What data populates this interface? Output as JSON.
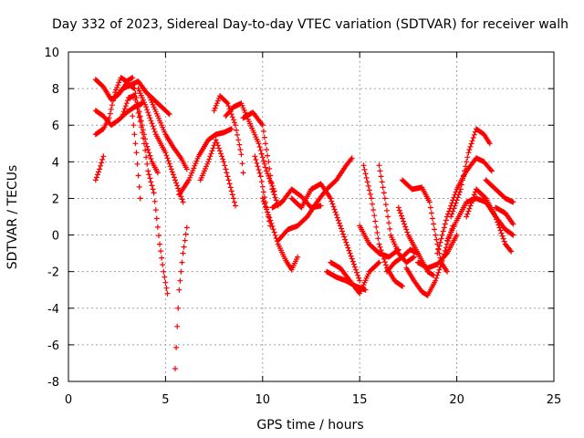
{
  "chart_data": {
    "type": "scatter",
    "title": "Day 332 of 2023, Sidereal Day-to-day VTEC variation (SDTVAR) for receiver walh",
    "xlabel": "GPS time / hours",
    "ylabel": "SDTVAR / TECUs",
    "xlim": [
      0,
      25
    ],
    "ylim": [
      -8,
      10
    ],
    "xticks": [
      0,
      5,
      10,
      15,
      20,
      25
    ],
    "yticks": [
      -8,
      -6,
      -4,
      -2,
      0,
      2,
      4,
      6,
      8,
      10
    ],
    "grid": true,
    "marker": "+",
    "series": [
      {
        "name": "arcs",
        "color": "#ff0000",
        "arcs": [
          [
            [
              1.4,
              8.5
            ],
            [
              1.8,
              8.1
            ],
            [
              2.2,
              7.4
            ],
            [
              2.6,
              7.7
            ],
            [
              3.0,
              8.3
            ],
            [
              3.4,
              8.0
            ],
            [
              3.7,
              6.5
            ],
            [
              4.0,
              5.0
            ],
            [
              4.3,
              4.0
            ],
            [
              4.6,
              3.4
            ]
          ],
          [
            [
              1.4,
              6.8
            ],
            [
              1.8,
              6.5
            ],
            [
              2.2,
              6.0
            ],
            [
              2.6,
              6.3
            ],
            [
              3.0,
              6.7
            ],
            [
              3.4,
              7.0
            ],
            [
              3.8,
              7.2
            ]
          ],
          [
            [
              1.4,
              5.5
            ],
            [
              1.8,
              5.8
            ],
            [
              2.1,
              6.4
            ],
            [
              2.4,
              7.8
            ],
            [
              2.7,
              8.6
            ],
            [
              3.0,
              8.4
            ],
            [
              3.3,
              8.6
            ]
          ],
          [
            [
              1.4,
              3.0
            ],
            [
              1.6,
              3.6
            ],
            [
              1.8,
              4.3
            ]
          ],
          [
            [
              2.4,
              7.5
            ],
            [
              2.8,
              8.0
            ],
            [
              3.2,
              8.2
            ],
            [
              3.6,
              8.4
            ],
            [
              4.0,
              7.8
            ],
            [
              4.4,
              7.4
            ],
            [
              4.8,
              7.0
            ],
            [
              5.2,
              6.6
            ]
          ],
          [
            [
              2.8,
              6.6
            ],
            [
              3.1,
              7.5
            ],
            [
              3.4,
              7.6
            ],
            [
              3.7,
              6.2
            ],
            [
              3.9,
              5.0
            ],
            [
              4.1,
              3.5
            ],
            [
              4.4,
              2.3
            ],
            [
              4.7,
              -0.5
            ],
            [
              4.9,
              -2.0
            ],
            [
              5.1,
              -3.2
            ]
          ],
          [
            [
              3.3,
              6.5
            ],
            [
              3.5,
              4.5
            ],
            [
              3.7,
              2.0
            ]
          ],
          [
            [
              3.6,
              8.0
            ],
            [
              4.0,
              7.0
            ],
            [
              4.5,
              5.5
            ],
            [
              5.0,
              4.5
            ],
            [
              5.5,
              3.0
            ],
            [
              5.9,
              1.8
            ]
          ],
          [
            [
              4.2,
              7.5
            ],
            [
              4.6,
              6.5
            ],
            [
              5.0,
              5.5
            ],
            [
              5.4,
              4.8
            ],
            [
              5.8,
              4.2
            ],
            [
              6.1,
              3.6
            ]
          ],
          [
            [
              5.5,
              -7.3
            ],
            [
              5.6,
              -5.0
            ],
            [
              5.7,
              -3.0
            ],
            [
              5.9,
              -1.0
            ],
            [
              6.1,
              0.4
            ]
          ],
          [
            [
              5.7,
              2.2
            ],
            [
              6.2,
              3.0
            ],
            [
              6.7,
              4.3
            ],
            [
              7.2,
              5.2
            ],
            [
              7.6,
              5.5
            ],
            [
              8.0,
              5.6
            ],
            [
              8.4,
              5.8
            ]
          ],
          [
            [
              6.8,
              3.0
            ],
            [
              7.2,
              4.0
            ],
            [
              7.6,
              5.2
            ],
            [
              8.0,
              4.0
            ],
            [
              8.4,
              2.4
            ],
            [
              8.6,
              1.6
            ]
          ],
          [
            [
              7.5,
              6.8
            ],
            [
              7.8,
              7.6
            ],
            [
              8.2,
              7.2
            ],
            [
              8.6,
              6.0
            ],
            [
              8.9,
              4.4
            ],
            [
              9.0,
              3.4
            ]
          ],
          [
            [
              8.1,
              6.5
            ],
            [
              8.5,
              7.0
            ],
            [
              8.9,
              7.2
            ],
            [
              9.3,
              6.2
            ],
            [
              9.8,
              5.0
            ],
            [
              10.2,
              3.5
            ],
            [
              10.6,
              2.4
            ]
          ],
          [
            [
              9.0,
              6.4
            ],
            [
              9.5,
              6.7
            ],
            [
              10.0,
              6.0
            ],
            [
              10.3,
              4.0
            ],
            [
              10.5,
              2.5
            ],
            [
              10.8,
              1.6
            ]
          ],
          [
            [
              9.6,
              4.3
            ],
            [
              9.9,
              3.2
            ],
            [
              10.2,
              1.5
            ],
            [
              10.4,
              0.5
            ]
          ],
          [
            [
              10.0,
              2.0
            ],
            [
              10.4,
              0.8
            ],
            [
              10.8,
              -0.5
            ],
            [
              11.2,
              -1.4
            ],
            [
              11.5,
              -1.9
            ],
            [
              11.8,
              -1.2
            ]
          ],
          [
            [
              10.5,
              1.5
            ],
            [
              11.0,
              1.8
            ],
            [
              11.5,
              2.5
            ],
            [
              12.0,
              2.1
            ],
            [
              12.5,
              1.5
            ],
            [
              13.0,
              1.6
            ]
          ],
          [
            [
              10.8,
              -0.3
            ],
            [
              11.3,
              0.3
            ],
            [
              11.8,
              0.5
            ],
            [
              12.3,
              1.0
            ],
            [
              12.8,
              1.8
            ],
            [
              13.3,
              2.5
            ],
            [
              13.8,
              3.0
            ],
            [
              14.3,
              3.8
            ],
            [
              14.6,
              4.2
            ]
          ],
          [
            [
              11.5,
              2.0
            ],
            [
              12.0,
              1.5
            ],
            [
              12.5,
              2.5
            ],
            [
              13.0,
              2.8
            ],
            [
              13.5,
              2.0
            ],
            [
              14.0,
              0.5
            ],
            [
              14.5,
              -1.0
            ],
            [
              15.0,
              -2.5
            ]
          ],
          [
            [
              13.3,
              -2.0
            ],
            [
              13.8,
              -2.3
            ],
            [
              14.3,
              -2.5
            ],
            [
              14.8,
              -2.8
            ],
            [
              15.3,
              -3.0
            ]
          ],
          [
            [
              13.5,
              -1.5
            ],
            [
              14.0,
              -1.8
            ],
            [
              14.5,
              -2.5
            ],
            [
              15.0,
              -3.2
            ],
            [
              15.5,
              -2.0
            ],
            [
              16.0,
              -1.5
            ]
          ],
          [
            [
              15.0,
              0.5
            ],
            [
              15.5,
              -0.5
            ],
            [
              16.0,
              -1.0
            ],
            [
              16.5,
              -1.2
            ],
            [
              17.0,
              -0.8
            ]
          ],
          [
            [
              15.2,
              3.8
            ],
            [
              15.6,
              2.0
            ],
            [
              16.0,
              -0.5
            ],
            [
              16.4,
              -1.8
            ],
            [
              16.8,
              -2.5
            ],
            [
              17.2,
              -2.8
            ]
          ],
          [
            [
              16.0,
              3.8
            ],
            [
              16.3,
              2.0
            ],
            [
              16.6,
              0.0
            ],
            [
              17.0,
              -1.0
            ],
            [
              17.4,
              -1.5
            ],
            [
              17.8,
              -1.2
            ]
          ],
          [
            [
              16.4,
              -2.0
            ],
            [
              16.8,
              -1.5
            ],
            [
              17.2,
              -1.2
            ],
            [
              17.6,
              -0.8
            ],
            [
              18.0,
              -1.0
            ]
          ],
          [
            [
              17.0,
              1.5
            ],
            [
              17.5,
              0.0
            ],
            [
              18.0,
              -1.0
            ],
            [
              18.5,
              -2.0
            ],
            [
              18.8,
              -2.2
            ]
          ],
          [
            [
              17.2,
              3.0
            ],
            [
              17.7,
              2.5
            ],
            [
              18.2,
              2.6
            ],
            [
              18.6,
              1.8
            ],
            [
              18.9,
              0.0
            ],
            [
              19.2,
              -1.5
            ],
            [
              19.5,
              -2.0
            ]
          ],
          [
            [
              17.4,
              -1.8
            ],
            [
              17.8,
              -2.5
            ],
            [
              18.2,
              -3.1
            ],
            [
              18.5,
              -3.3
            ],
            [
              18.9,
              -2.5
            ],
            [
              19.2,
              -1.6
            ],
            [
              19.5,
              -0.5
            ],
            [
              19.8,
              0.5
            ]
          ],
          [
            [
              18.0,
              -1.5
            ],
            [
              18.5,
              -1.8
            ],
            [
              19.0,
              -1.6
            ],
            [
              19.5,
              -1.0
            ],
            [
              20.0,
              0.0
            ]
          ],
          [
            [
              19.0,
              -1.0
            ],
            [
              19.5,
              1.0
            ],
            [
              20.0,
              2.5
            ],
            [
              20.5,
              3.5
            ],
            [
              21.0,
              4.2
            ],
            [
              21.4,
              4.0
            ],
            [
              21.8,
              3.5
            ]
          ],
          [
            [
              19.7,
              1.0
            ],
            [
              20.2,
              2.5
            ],
            [
              20.6,
              4.5
            ],
            [
              21.0,
              5.8
            ],
            [
              21.4,
              5.5
            ],
            [
              21.7,
              5.0
            ]
          ],
          [
            [
              19.5,
              -0.3
            ],
            [
              20.0,
              0.8
            ],
            [
              20.5,
              1.8
            ],
            [
              21.0,
              2.0
            ],
            [
              21.5,
              1.8
            ],
            [
              22.0,
              1.0
            ],
            [
              22.5,
              0.3
            ],
            [
              22.9,
              0.0
            ]
          ],
          [
            [
              20.5,
              1.0
            ],
            [
              21.0,
              2.5
            ],
            [
              21.5,
              2.0
            ],
            [
              22.0,
              1.0
            ],
            [
              22.5,
              -0.5
            ],
            [
              22.8,
              -0.9
            ]
          ],
          [
            [
              21.5,
              3.0
            ],
            [
              22.0,
              2.5
            ],
            [
              22.5,
              2.0
            ],
            [
              22.9,
              1.8
            ]
          ],
          [
            [
              22.0,
              1.5
            ],
            [
              22.5,
              1.2
            ],
            [
              22.9,
              0.6
            ]
          ]
        ]
      }
    ]
  }
}
